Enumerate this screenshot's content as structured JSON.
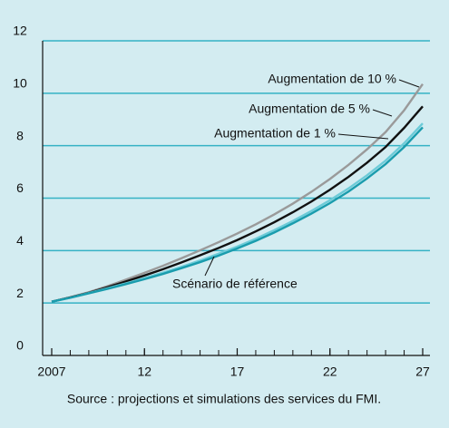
{
  "chart_data": {
    "type": "line",
    "source": "Source : projections et simulations des services du FMI.",
    "x": [
      2007,
      2008,
      2009,
      2010,
      2011,
      2012,
      2013,
      2014,
      2015,
      2016,
      2017,
      2018,
      2019,
      2020,
      2021,
      2022,
      2023,
      2024,
      2025,
      2026,
      2027
    ],
    "series": [
      {
        "name": "Augmentation de 10 %",
        "color": "#9a9a9a",
        "values": [
          2.05,
          2.22,
          2.41,
          2.64,
          2.89,
          3.15,
          3.42,
          3.71,
          4.01,
          4.32,
          4.65,
          5.0,
          5.38,
          5.79,
          6.24,
          6.73,
          7.27,
          7.86,
          8.52,
          9.35,
          10.35
        ]
      },
      {
        "name": "Augmentation de 5 %",
        "color": "#111111",
        "values": [
          2.05,
          2.21,
          2.39,
          2.6,
          2.82,
          3.05,
          3.29,
          3.55,
          3.82,
          4.1,
          4.4,
          4.73,
          5.08,
          5.46,
          5.87,
          6.32,
          6.81,
          7.35,
          7.95,
          8.68,
          9.5
        ]
      },
      {
        "name": "Augmentation de 1 %",
        "color": "#6ccbd8",
        "values": [
          2.05,
          2.2,
          2.38,
          2.56,
          2.75,
          2.95,
          3.16,
          3.38,
          3.62,
          3.88,
          4.15,
          4.45,
          4.78,
          5.13,
          5.51,
          5.92,
          6.37,
          6.87,
          7.43,
          8.09,
          8.85
        ]
      },
      {
        "name": "Scénario de référence",
        "color": "#1a9cad",
        "values": [
          2.05,
          2.2,
          2.37,
          2.54,
          2.72,
          2.91,
          3.11,
          3.33,
          3.56,
          3.81,
          4.08,
          4.37,
          4.69,
          5.04,
          5.41,
          5.81,
          6.25,
          6.75,
          7.3,
          7.95,
          8.7
        ]
      }
    ],
    "xlim": [
      2007,
      2027
    ],
    "xticks": [
      2007,
      {
        "value": 2012,
        "label": "12"
      },
      {
        "value": 2017,
        "label": "17"
      },
      {
        "value": 2022,
        "label": "22"
      },
      {
        "value": 2027,
        "label": "27"
      }
    ],
    "ylim": [
      0,
      12
    ],
    "yticks": [
      0,
      2,
      4,
      6,
      8,
      10,
      12
    ],
    "grid": true,
    "grid_color": "#35b2c5"
  }
}
